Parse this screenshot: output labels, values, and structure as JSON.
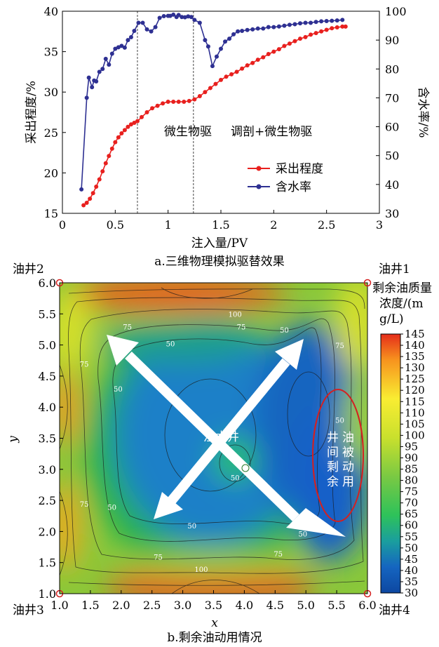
{
  "chart_data": [
    {
      "type": "line",
      "caption": "a.三维物理模拟驱替效果",
      "xlabel": "注入量/PV",
      "ylabel_left": "采出程度/%",
      "ylabel_right": "含水率/%",
      "xlim": [
        0,
        3
      ],
      "ylim_left": [
        15,
        40
      ],
      "ylim_right": [
        30,
        100
      ],
      "xticks": [
        0,
        0.5,
        1,
        1.5,
        2,
        2.5,
        3
      ],
      "xtick_labels": [
        "0",
        "0.5",
        "1",
        "1.5",
        "2",
        "2.5",
        "3"
      ],
      "yticks_left": [
        15,
        20,
        25,
        30,
        35,
        40
      ],
      "yticks_right": [
        30,
        40,
        50,
        60,
        70,
        80,
        90,
        100
      ],
      "stage_lines_x": [
        0.71,
        1.24
      ],
      "stage_labels": [
        "微生物驱",
        "调剖+微生物驱"
      ],
      "legend_position": "lower-right",
      "series": [
        {
          "name": "采出程度",
          "axis": "left",
          "color": "#e8201e",
          "x": [
            0.2,
            0.23,
            0.26,
            0.29,
            0.32,
            0.35,
            0.38,
            0.41,
            0.44,
            0.47,
            0.5,
            0.53,
            0.56,
            0.59,
            0.62,
            0.65,
            0.68,
            0.71,
            0.75,
            0.8,
            0.85,
            0.9,
            0.95,
            1.0,
            1.05,
            1.1,
            1.15,
            1.2,
            1.25,
            1.3,
            1.35,
            1.4,
            1.45,
            1.5,
            1.55,
            1.6,
            1.65,
            1.7,
            1.75,
            1.8,
            1.85,
            1.9,
            1.95,
            2.0,
            2.05,
            2.1,
            2.15,
            2.2,
            2.25,
            2.3,
            2.35,
            2.4,
            2.45,
            2.5,
            2.55,
            2.6,
            2.65,
            2.68
          ],
          "y": [
            16.0,
            16.3,
            16.8,
            17.5,
            18.3,
            19.2,
            20.2,
            21.2,
            22.1,
            23.0,
            23.8,
            24.4,
            24.9,
            25.3,
            25.7,
            26.0,
            26.2,
            26.4,
            26.9,
            27.5,
            28.0,
            28.3,
            28.6,
            28.8,
            28.8,
            28.8,
            28.8,
            28.9,
            29.1,
            29.5,
            30.0,
            30.5,
            31.0,
            31.5,
            31.9,
            32.2,
            32.5,
            32.9,
            33.3,
            33.6,
            34.0,
            34.3,
            34.7,
            35.0,
            35.3,
            35.7,
            36.0,
            36.3,
            36.6,
            36.8,
            37.1,
            37.3,
            37.5,
            37.7,
            37.9,
            38.0,
            38.1,
            38.1
          ]
        },
        {
          "name": "含水率",
          "axis": "right",
          "color": "#2e3092",
          "x": [
            0.18,
            0.23,
            0.25,
            0.28,
            0.3,
            0.32,
            0.35,
            0.38,
            0.41,
            0.44,
            0.47,
            0.5,
            0.53,
            0.56,
            0.59,
            0.62,
            0.65,
            0.68,
            0.72,
            0.76,
            0.8,
            0.84,
            0.88,
            0.92,
            0.96,
            1.0,
            1.02,
            1.05,
            1.08,
            1.1,
            1.13,
            1.16,
            1.19,
            1.22,
            1.25,
            1.3,
            1.35,
            1.38,
            1.42,
            1.46,
            1.5,
            1.54,
            1.58,
            1.62,
            1.66,
            1.7,
            1.75,
            1.8,
            1.85,
            1.9,
            1.95,
            2.0,
            2.05,
            2.1,
            2.15,
            2.2,
            2.25,
            2.3,
            2.35,
            2.4,
            2.45,
            2.5,
            2.55,
            2.6,
            2.65
          ],
          "y": [
            38.3,
            70.0,
            77.0,
            73.7,
            76.0,
            75.7,
            79.0,
            80.0,
            83.5,
            81.5,
            85.3,
            87.0,
            87.5,
            88.0,
            87.4,
            90.0,
            91.0,
            93.2,
            96.0,
            96.0,
            93.7,
            93.0,
            94.5,
            97.7,
            98.3,
            98.4,
            98.4,
            98.8,
            98.0,
            98.7,
            98.0,
            97.9,
            98.2,
            98.0,
            97.0,
            96.0,
            90.0,
            87.8,
            81.0,
            84.3,
            87.0,
            89.5,
            90.5,
            92.0,
            93.0,
            93.2,
            93.5,
            93.7,
            94.0,
            94.0,
            94.5,
            94.5,
            94.7,
            95.0,
            95.3,
            95.5,
            95.8,
            96.0,
            96.0,
            96.3,
            96.5,
            96.6,
            96.7,
            96.8,
            97.0
          ]
        }
      ]
    },
    {
      "type": "heatmap",
      "caption": "b.剩余油动用情况",
      "xlabel": "x",
      "ylabel": "y",
      "xlim": [
        1.0,
        6.0
      ],
      "ylim": [
        1.0,
        6.0
      ],
      "xtick_labels": [
        "1.0",
        "1.5",
        "2.0",
        "2.5",
        "3.0",
        "3.5",
        "4.0",
        "4.5",
        "5.0",
        "5.5",
        "6.0"
      ],
      "ytick_labels": [
        "1.0",
        "1.5",
        "2.0",
        "2.5",
        "3.0",
        "3.5",
        "4.0",
        "4.5",
        "5.0",
        "5.5",
        "6.0"
      ],
      "colorbar_title": "剩余油质量浓度/(mg/L)",
      "colorbar_min": 30,
      "colorbar_max": 145,
      "colorbar_tick_labels": [
        "145",
        "140",
        "135",
        "130",
        "125",
        "120",
        "115",
        "110",
        "105",
        "100",
        "95",
        "90",
        "85",
        "80",
        "75",
        "70",
        "65",
        "60",
        "55",
        "50",
        "45",
        "40",
        "35",
        "30"
      ],
      "colorbar_colors": [
        "#e52d1a",
        "#f7931e",
        "#f9ed32",
        "#c9e02d",
        "#7ac943",
        "#2ec25a",
        "#1a9e9e",
        "#1565c0",
        "#0d47a1"
      ],
      "wells": [
        {
          "label": "油井2",
          "x": 1.0,
          "y": 6.0
        },
        {
          "label": "油井1",
          "x": 6.0,
          "y": 6.0
        },
        {
          "label": "油井3",
          "x": 1.0,
          "y": 1.0
        },
        {
          "label": "油井4",
          "x": 6.0,
          "y": 1.0
        }
      ],
      "injection_well": {
        "label": "注水井",
        "x": 4.0,
        "y": 3.0
      },
      "annotation": "井间剩余油被动用",
      "contour_labels": [
        {
          "text": "100",
          "x": 3.85,
          "y": 5.45
        },
        {
          "text": "75",
          "x": 2.1,
          "y": 5.25
        },
        {
          "text": "75",
          "x": 3.95,
          "y": 5.25
        },
        {
          "text": "50",
          "x": 2.8,
          "y": 4.98
        },
        {
          "text": "50",
          "x": 4.65,
          "y": 5.2
        },
        {
          "text": "75",
          "x": 5.55,
          "y": 4.95
        },
        {
          "text": "75",
          "x": 1.4,
          "y": 4.65
        },
        {
          "text": "50",
          "x": 1.95,
          "y": 4.25
        },
        {
          "text": "50",
          "x": 5.55,
          "y": 3.75
        },
        {
          "text": "50",
          "x": 3.85,
          "y": 2.82
        },
        {
          "text": "75",
          "x": 1.4,
          "y": 2.4
        },
        {
          "text": "50",
          "x": 1.85,
          "y": 2.35
        },
        {
          "text": "50",
          "x": 3.15,
          "y": 2.05
        },
        {
          "text": "50",
          "x": 4.95,
          "y": 1.92
        },
        {
          "text": "75",
          "x": 2.6,
          "y": 1.55
        },
        {
          "text": "75",
          "x": 4.55,
          "y": 1.6
        },
        {
          "text": "100",
          "x": 3.3,
          "y": 1.35
        }
      ]
    }
  ]
}
